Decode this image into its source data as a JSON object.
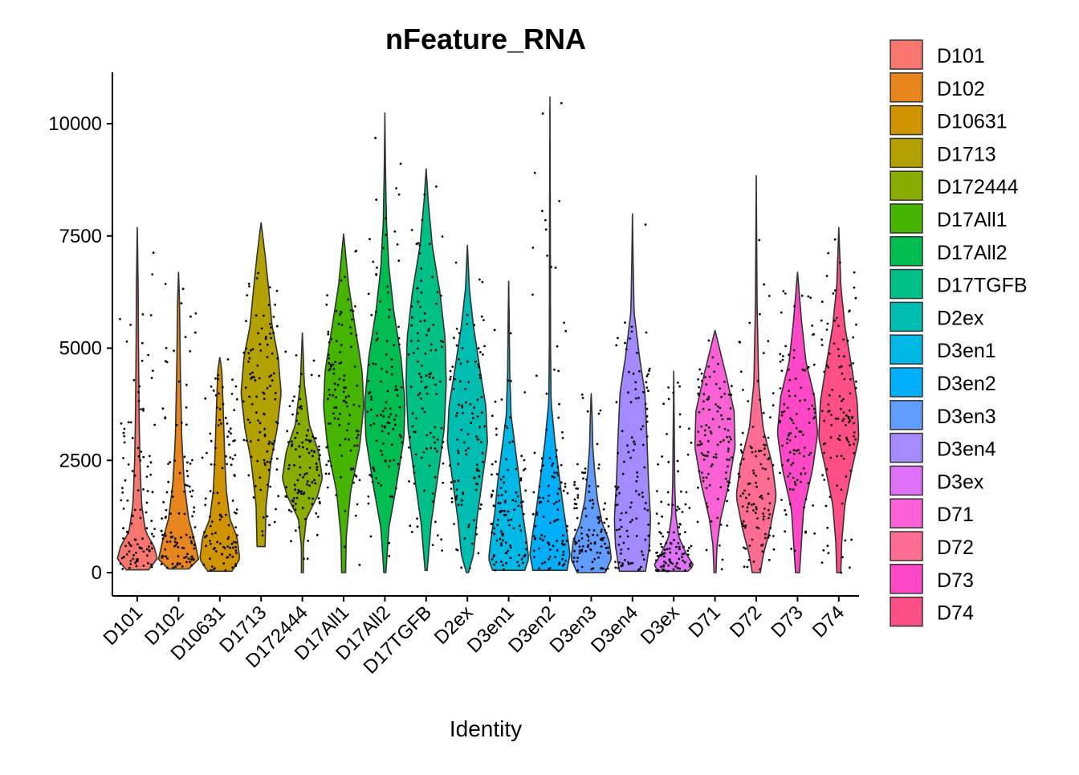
{
  "chart_data": {
    "type": "violin",
    "title": "nFeature_RNA",
    "xlabel": "Identity",
    "ylabel": "",
    "ylim": [
      -400,
      11100
    ],
    "yticks": [
      0,
      2500,
      5000,
      7500,
      10000
    ],
    "grid": false,
    "legend_position": "right",
    "series": [
      {
        "name": "D101",
        "color": "#F8766D",
        "min": 60,
        "max": 7700,
        "median": 400,
        "q1": 180,
        "q3": 800,
        "density": [
          [
            60,
            0.55
          ],
          [
            300,
            1.0
          ],
          [
            600,
            0.82
          ],
          [
            900,
            0.42
          ],
          [
            1500,
            0.22
          ],
          [
            2500,
            0.13
          ],
          [
            3500,
            0.09
          ],
          [
            5000,
            0.06
          ],
          [
            6500,
            0.04
          ],
          [
            7700,
            0
          ]
        ]
      },
      {
        "name": "D102",
        "color": "#E7851E",
        "min": 80,
        "max": 6700,
        "median": 350,
        "q1": 200,
        "q3": 900,
        "density": [
          [
            80,
            0.5
          ],
          [
            300,
            1.0
          ],
          [
            700,
            0.8
          ],
          [
            1200,
            0.5
          ],
          [
            2000,
            0.28
          ],
          [
            3000,
            0.16
          ],
          [
            4500,
            0.09
          ],
          [
            6000,
            0.05
          ],
          [
            6700,
            0
          ]
        ]
      },
      {
        "name": "D10631",
        "color": "#D09400",
        "min": 30,
        "max": 4800,
        "median": 400,
        "q1": 150,
        "q3": 900,
        "density": [
          [
            30,
            0.6
          ],
          [
            300,
            1.0
          ],
          [
            800,
            0.85
          ],
          [
            1200,
            0.5
          ],
          [
            1800,
            0.33
          ],
          [
            2500,
            0.25
          ],
          [
            3500,
            0.18
          ],
          [
            4500,
            0.1
          ],
          [
            4800,
            0
          ]
        ]
      },
      {
        "name": "D1713",
        "color": "#B2A100",
        "min": 580,
        "max": 7800,
        "median": 4100,
        "q1": 3300,
        "q3": 4800,
        "density": [
          [
            580,
            0.2
          ],
          [
            1500,
            0.25
          ],
          [
            2500,
            0.5
          ],
          [
            3200,
            0.8
          ],
          [
            4000,
            1.0
          ],
          [
            4800,
            0.85
          ],
          [
            5500,
            0.55
          ],
          [
            6300,
            0.38
          ],
          [
            7000,
            0.22
          ],
          [
            7800,
            0
          ]
        ]
      },
      {
        "name": "D172444",
        "color": "#89AC00",
        "min": 0,
        "max": 5350,
        "median": 2200,
        "q1": 1800,
        "q3": 2600,
        "density": [
          [
            0,
            0.05
          ],
          [
            600,
            0.05
          ],
          [
            1200,
            0.2
          ],
          [
            1700,
            0.75
          ],
          [
            2100,
            1.0
          ],
          [
            2700,
            0.8
          ],
          [
            3300,
            0.35
          ],
          [
            4200,
            0.1
          ],
          [
            5350,
            0
          ]
        ]
      },
      {
        "name": "D17All1",
        "color": "#45B500",
        "min": 0,
        "max": 7550,
        "median": 3800,
        "q1": 3000,
        "q3": 4600,
        "density": [
          [
            0,
            0.1
          ],
          [
            800,
            0.13
          ],
          [
            1800,
            0.35
          ],
          [
            2800,
            0.8
          ],
          [
            3700,
            1.0
          ],
          [
            4500,
            0.92
          ],
          [
            5400,
            0.6
          ],
          [
            6400,
            0.25
          ],
          [
            7550,
            0
          ]
        ]
      },
      {
        "name": "D17All2",
        "color": "#00BC51",
        "min": 0,
        "max": 10250,
        "median": 3300,
        "q1": 2300,
        "q3": 4300,
        "density": [
          [
            0,
            0.05
          ],
          [
            1000,
            0.2
          ],
          [
            2000,
            0.6
          ],
          [
            3000,
            0.95
          ],
          [
            3800,
            1.0
          ],
          [
            4800,
            0.8
          ],
          [
            5800,
            0.45
          ],
          [
            6800,
            0.2
          ],
          [
            7800,
            0.08
          ],
          [
            9000,
            0.03
          ],
          [
            10250,
            0
          ]
        ]
      },
      {
        "name": "D17TGFB",
        "color": "#00C087",
        "min": 50,
        "max": 9000,
        "median": 3500,
        "q1": 2500,
        "q3": 4500,
        "density": [
          [
            50,
            0.05
          ],
          [
            1100,
            0.25
          ],
          [
            2200,
            0.6
          ],
          [
            3200,
            0.9
          ],
          [
            4200,
            1.0
          ],
          [
            5200,
            0.95
          ],
          [
            6200,
            0.7
          ],
          [
            7300,
            0.3
          ],
          [
            8300,
            0.1
          ],
          [
            9000,
            0
          ]
        ]
      },
      {
        "name": "D2ex",
        "color": "#00BDB2",
        "min": 0,
        "max": 7300,
        "median": 2900,
        "q1": 2200,
        "q3": 3600,
        "density": [
          [
            0,
            0.05
          ],
          [
            400,
            0.3
          ],
          [
            1200,
            0.48
          ],
          [
            2100,
            0.75
          ],
          [
            2900,
            1.0
          ],
          [
            3700,
            0.92
          ],
          [
            4600,
            0.6
          ],
          [
            5500,
            0.3
          ],
          [
            6300,
            0.1
          ],
          [
            7300,
            0
          ]
        ]
      },
      {
        "name": "D3en1",
        "color": "#00B8E5",
        "min": 50,
        "max": 6500,
        "median": 600,
        "q1": 300,
        "q3": 1400,
        "density": [
          [
            50,
            0.8
          ],
          [
            300,
            1.0
          ],
          [
            700,
            0.9
          ],
          [
            1300,
            0.7
          ],
          [
            2000,
            0.55
          ],
          [
            2700,
            0.35
          ],
          [
            3500,
            0.12
          ],
          [
            4500,
            0.05
          ],
          [
            5500,
            0.03
          ],
          [
            6500,
            0
          ]
        ]
      },
      {
        "name": "D3en2",
        "color": "#00AEFA",
        "min": 50,
        "max": 10600,
        "median": 700,
        "q1": 300,
        "q3": 1600,
        "density": [
          [
            50,
            0.85
          ],
          [
            400,
            1.0
          ],
          [
            900,
            0.85
          ],
          [
            1500,
            0.65
          ],
          [
            2200,
            0.45
          ],
          [
            2900,
            0.25
          ],
          [
            3800,
            0.06
          ],
          [
            5000,
            0.03
          ],
          [
            7500,
            0.02
          ],
          [
            10600,
            0
          ]
        ]
      },
      {
        "name": "D3en3",
        "color": "#619CFF",
        "min": 0,
        "max": 4000,
        "median": 400,
        "q1": 150,
        "q3": 800,
        "density": [
          [
            0,
            0.7
          ],
          [
            300,
            1.0
          ],
          [
            700,
            0.9
          ],
          [
            1100,
            0.55
          ],
          [
            1600,
            0.32
          ],
          [
            2200,
            0.18
          ],
          [
            2800,
            0.08
          ],
          [
            3400,
            0.05
          ],
          [
            4000,
            0
          ]
        ]
      },
      {
        "name": "D3en4",
        "color": "#A58AFF",
        "min": 30,
        "max": 8000,
        "median": 1300,
        "q1": 500,
        "q3": 3000,
        "density": [
          [
            30,
            0.65
          ],
          [
            600,
            0.85
          ],
          [
            1200,
            0.9
          ],
          [
            2000,
            0.8
          ],
          [
            3000,
            0.72
          ],
          [
            4000,
            0.62
          ],
          [
            4800,
            0.35
          ],
          [
            5800,
            0.08
          ],
          [
            7000,
            0.03
          ],
          [
            8000,
            0
          ]
        ]
      },
      {
        "name": "D3ex",
        "color": "#DF70F8",
        "min": 30,
        "max": 4500,
        "median": 200,
        "q1": 100,
        "q3": 500,
        "density": [
          [
            30,
            0.7
          ],
          [
            150,
            1.0
          ],
          [
            400,
            0.65
          ],
          [
            800,
            0.25
          ],
          [
            1300,
            0.1
          ],
          [
            2000,
            0.05
          ],
          [
            3000,
            0.03
          ],
          [
            4500,
            0
          ]
        ]
      },
      {
        "name": "D71",
        "color": "#FB61D7",
        "min": 0,
        "max": 5400,
        "median": 2600,
        "q1": 1800,
        "q3": 3200,
        "density": [
          [
            0,
            0.05
          ],
          [
            600,
            0.1
          ],
          [
            1200,
            0.28
          ],
          [
            2000,
            0.7
          ],
          [
            2800,
            1.0
          ],
          [
            3600,
            0.95
          ],
          [
            4400,
            0.55
          ],
          [
            5400,
            0
          ]
        ]
      },
      {
        "name": "D72",
        "color": "#FF6C91",
        "min": 0,
        "max": 8850,
        "median": 1700,
        "q1": 1200,
        "q3": 2300,
        "density": [
          [
            0,
            0.2
          ],
          [
            400,
            0.35
          ],
          [
            1000,
            0.7
          ],
          [
            1700,
            1.0
          ],
          [
            2400,
            0.8
          ],
          [
            3200,
            0.35
          ],
          [
            4200,
            0.12
          ],
          [
            6000,
            0.04
          ],
          [
            8850,
            0
          ]
        ]
      },
      {
        "name": "D73",
        "color": "#FF47C8",
        "min": 0,
        "max": 6700,
        "median": 3000,
        "q1": 2300,
        "q3": 3700,
        "density": [
          [
            0,
            0.1
          ],
          [
            700,
            0.2
          ],
          [
            1400,
            0.3
          ],
          [
            2300,
            0.75
          ],
          [
            3100,
            1.0
          ],
          [
            3900,
            0.85
          ],
          [
            4700,
            0.42
          ],
          [
            5600,
            0.2
          ],
          [
            6700,
            0
          ]
        ]
      },
      {
        "name": "D74",
        "color": "#FF4F86",
        "min": 0,
        "max": 7700,
        "median": 3100,
        "q1": 2500,
        "q3": 3800,
        "density": [
          [
            0,
            0.1
          ],
          [
            700,
            0.15
          ],
          [
            1500,
            0.3
          ],
          [
            2300,
            0.65
          ],
          [
            3000,
            1.0
          ],
          [
            3800,
            0.92
          ],
          [
            4700,
            0.6
          ],
          [
            5500,
            0.3
          ],
          [
            6400,
            0.1
          ],
          [
            7700,
            0
          ]
        ]
      }
    ]
  }
}
